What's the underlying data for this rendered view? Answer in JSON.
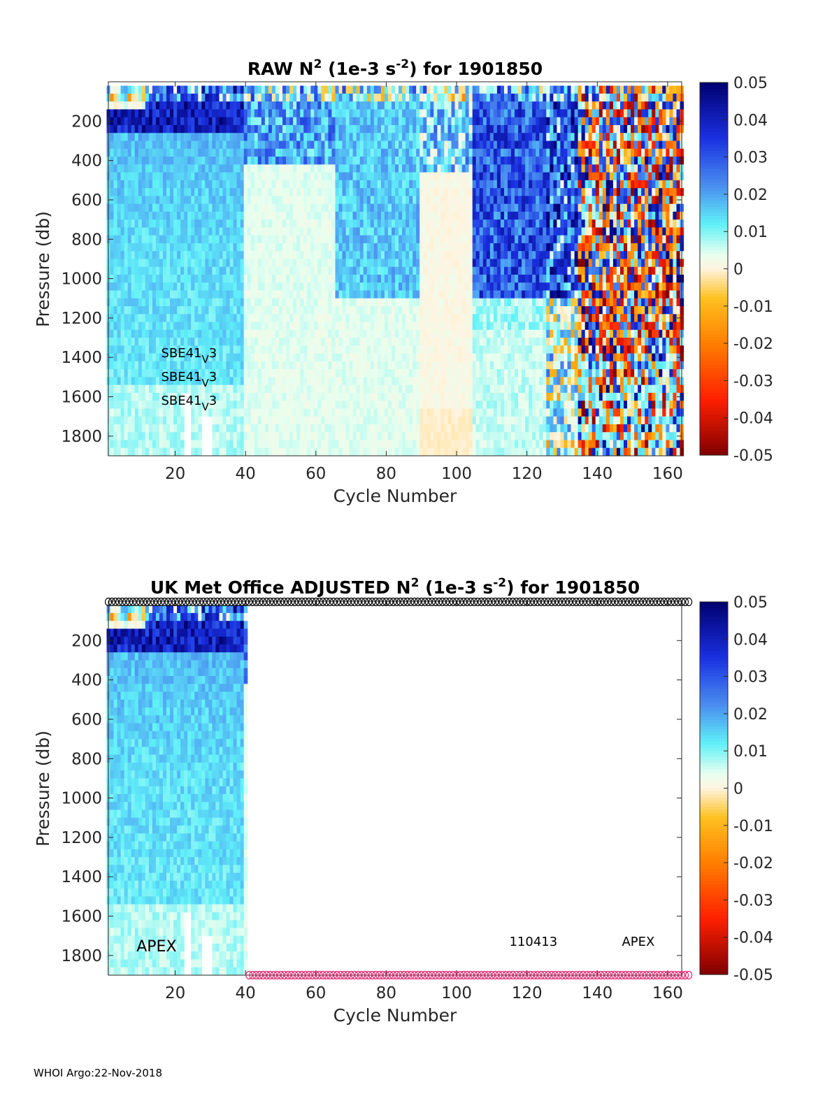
{
  "footer": "WHOI Argo:22-Nov-2018",
  "colorbar": {
    "ticks": [
      "0.05",
      "0.04",
      "0.03",
      "0.02",
      "0.01",
      "0",
      "-0.01",
      "-0.02",
      "-0.03",
      "-0.04",
      "-0.05"
    ],
    "range": [
      -0.05,
      0.05
    ],
    "colormap": [
      {
        "v": -0.05,
        "color": "#800000"
      },
      {
        "v": -0.035,
        "color": "#ff2000"
      },
      {
        "v": -0.02,
        "color": "#ff7f00"
      },
      {
        "v": -0.008,
        "color": "#ffc020"
      },
      {
        "v": 0.0,
        "color": "#fff4e0"
      },
      {
        "v": 0.004,
        "color": "#e6ffef"
      },
      {
        "v": 0.012,
        "color": "#60f0f8"
      },
      {
        "v": 0.022,
        "color": "#4a90f0"
      },
      {
        "v": 0.035,
        "color": "#1a30e0"
      },
      {
        "v": 0.05,
        "color": "#000070"
      }
    ]
  },
  "chart_data": [
    {
      "type": "heatmap",
      "title_parts": [
        "RAW N",
        "2",
        " (1e-3 s",
        "-2",
        ") for 1901850"
      ],
      "xlabel": "Cycle Number",
      "ylabel": "Pressure (db)",
      "xlim": [
        1,
        164
      ],
      "ylim": [
        1900,
        0
      ],
      "xticks": [
        "20",
        "40",
        "60",
        "80",
        "100",
        "120",
        "140",
        "160"
      ],
      "xtick_values": [
        20,
        40,
        60,
        80,
        100,
        120,
        140,
        160
      ],
      "yticks": [
        "200",
        "400",
        "600",
        "800",
        "1000",
        "1200",
        "1400",
        "1600",
        "1800"
      ],
      "ytick_values": [
        200,
        400,
        600,
        800,
        1000,
        1200,
        1400,
        1600,
        1800
      ],
      "cycles": [
        1,
        164
      ],
      "annotations": [
        {
          "text": "SBE41",
          "sub": "V",
          "suffix": "3",
          "x": 16,
          "y": 1400
        },
        {
          "text": "SBE41",
          "sub": "V",
          "suffix": "3",
          "x": 16,
          "y": 1520
        },
        {
          "text": "SBE41",
          "sub": "V",
          "suffix": "3",
          "x": 16,
          "y": 1640
        }
      ]
    },
    {
      "type": "heatmap",
      "title_parts": [
        "UK Met Office  ADJUSTED N",
        "2",
        " (1e-3 s",
        "-2",
        ") for 1901850"
      ],
      "xlabel": "Cycle Number",
      "ylabel": "Pressure (db)",
      "xlim": [
        1,
        164
      ],
      "ylim": [
        1900,
        0
      ],
      "xticks": [
        "20",
        "40",
        "60",
        "80",
        "100",
        "120",
        "140",
        "160"
      ],
      "xtick_values": [
        20,
        40,
        60,
        80,
        100,
        120,
        140,
        160
      ],
      "yticks": [
        "200",
        "400",
        "600",
        "800",
        "1000",
        "1200",
        "1400",
        "1600",
        "1800"
      ],
      "ytick_values": [
        200,
        400,
        600,
        800,
        1000,
        1200,
        1400,
        1600,
        1800
      ],
      "cycles": [
        1,
        40
      ],
      "top_marker_cycles": [
        1,
        166
      ],
      "bottom_marker_cycles": [
        41,
        166
      ],
      "top_marker_color": "#000000",
      "bottom_marker_color": "#e0206a",
      "annotations": [
        {
          "text": "APEX",
          "x": 9,
          "y": 1780,
          "size": 22
        },
        {
          "text": "110413",
          "x": 115,
          "y": 1750,
          "size": 18
        },
        {
          "text": "APEX",
          "x": 147,
          "y": 1750,
          "size": 18
        }
      ]
    }
  ]
}
